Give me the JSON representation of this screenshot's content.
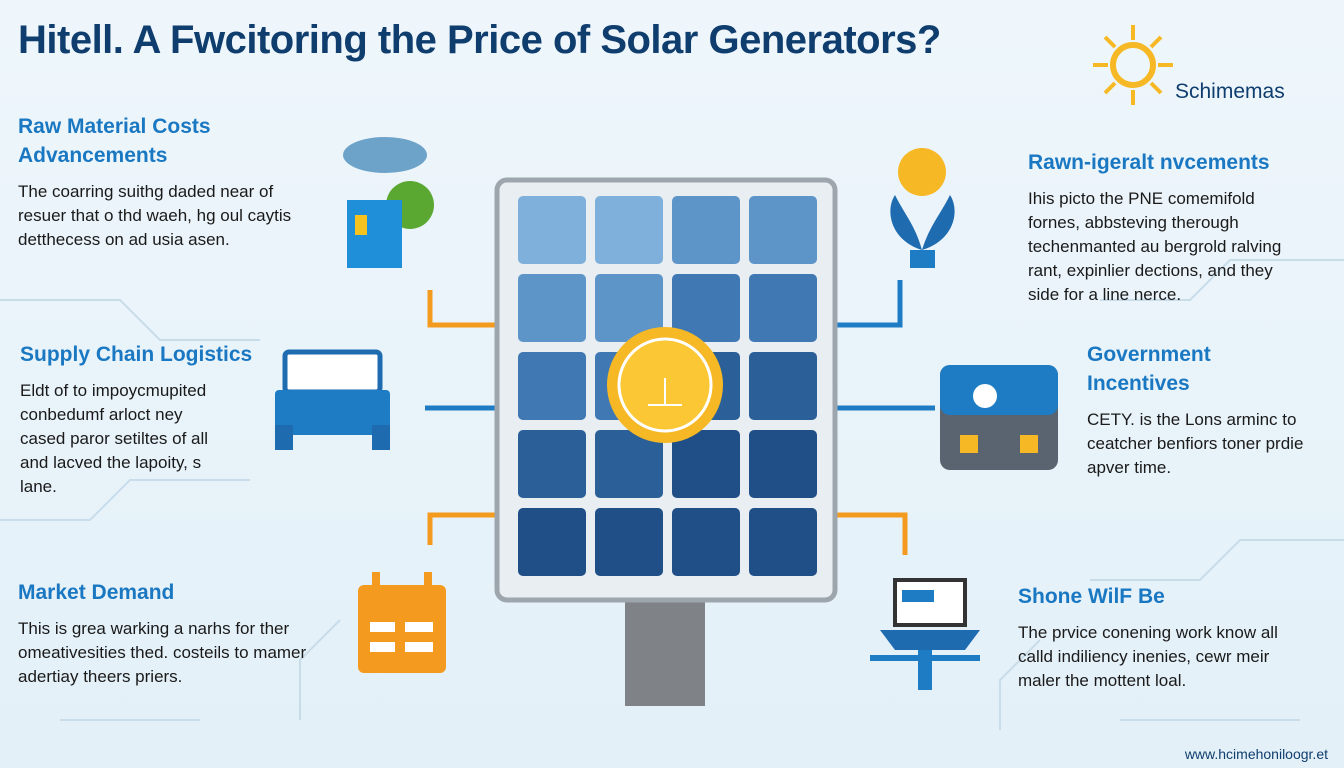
{
  "header": {
    "title": "Hitell.  A Fwcitoring the Price of Solar Generators?",
    "logo": "Schimemas"
  },
  "sections": [
    {
      "title": [
        "Raw Material Costs",
        "Advancements"
      ],
      "body": [
        "The coarring suithg daded near of",
        "resuer that o thd waeh, hg oul caytis",
        "detthecess on ad usia asen."
      ]
    },
    {
      "title": [
        "Supply Chain Logistics"
      ],
      "body": [
        "Eldt of to impoycmupited",
        "conbedumf arloct ney",
        "cased paror setiltes of all",
        "and lacved the lapoity, s",
        "lane."
      ]
    },
    {
      "title": [
        "Market Demand"
      ],
      "body": [
        "This is grea warking a narhs for ther",
        "omeativesities thed. costeils to mamer",
        "adertiay theers priers."
      ]
    },
    {
      "title": [
        "Rawn-igeralt nvcements"
      ],
      "body": [
        "Ihis picto the PNE comemifold",
        "fornes, abbsteving therough",
        "techenmanted au bergrold ralving",
        "rant, expinlier dections, and they",
        "side for a line nerce."
      ]
    },
    {
      "title": [
        "Government",
        "Incentives"
      ],
      "body": [
        "CETY. is the Lons arminc to",
        "ceatcher benfiors toner prdie",
        "apver time."
      ]
    },
    {
      "title": [
        "Shone WilF Be"
      ],
      "body": [
        "The prvice conening work know all",
        "calld indiliency inenies, cewr meir",
        "maler the mottent loal."
      ]
    }
  ],
  "footer": "www.hcimehoniloogr.et"
}
